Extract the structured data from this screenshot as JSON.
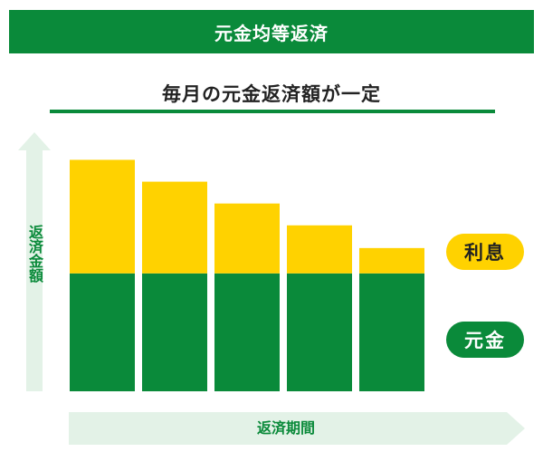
{
  "header": {
    "title": "元金均等返済"
  },
  "subtitle": "毎月の元金返済額が一定",
  "colors": {
    "brand_green": "#0a8a3a",
    "principal": "#0a8a3a",
    "interest": "#ffd200",
    "arrow_fill": "#e3f2e7"
  },
  "chart_data": {
    "type": "bar",
    "stacked": true,
    "categories": [
      "",
      "",
      "",
      "",
      ""
    ],
    "series": [
      {
        "name": "元金",
        "values": [
          135,
          135,
          135,
          135,
          135
        ]
      },
      {
        "name": "利息",
        "values": [
          130,
          105,
          80,
          55,
          29
        ]
      }
    ],
    "ylabel": "返済金額",
    "xlabel": "返済期間",
    "ylim": [
      0,
      280
    ],
    "grid": false,
    "legend": "right"
  }
}
